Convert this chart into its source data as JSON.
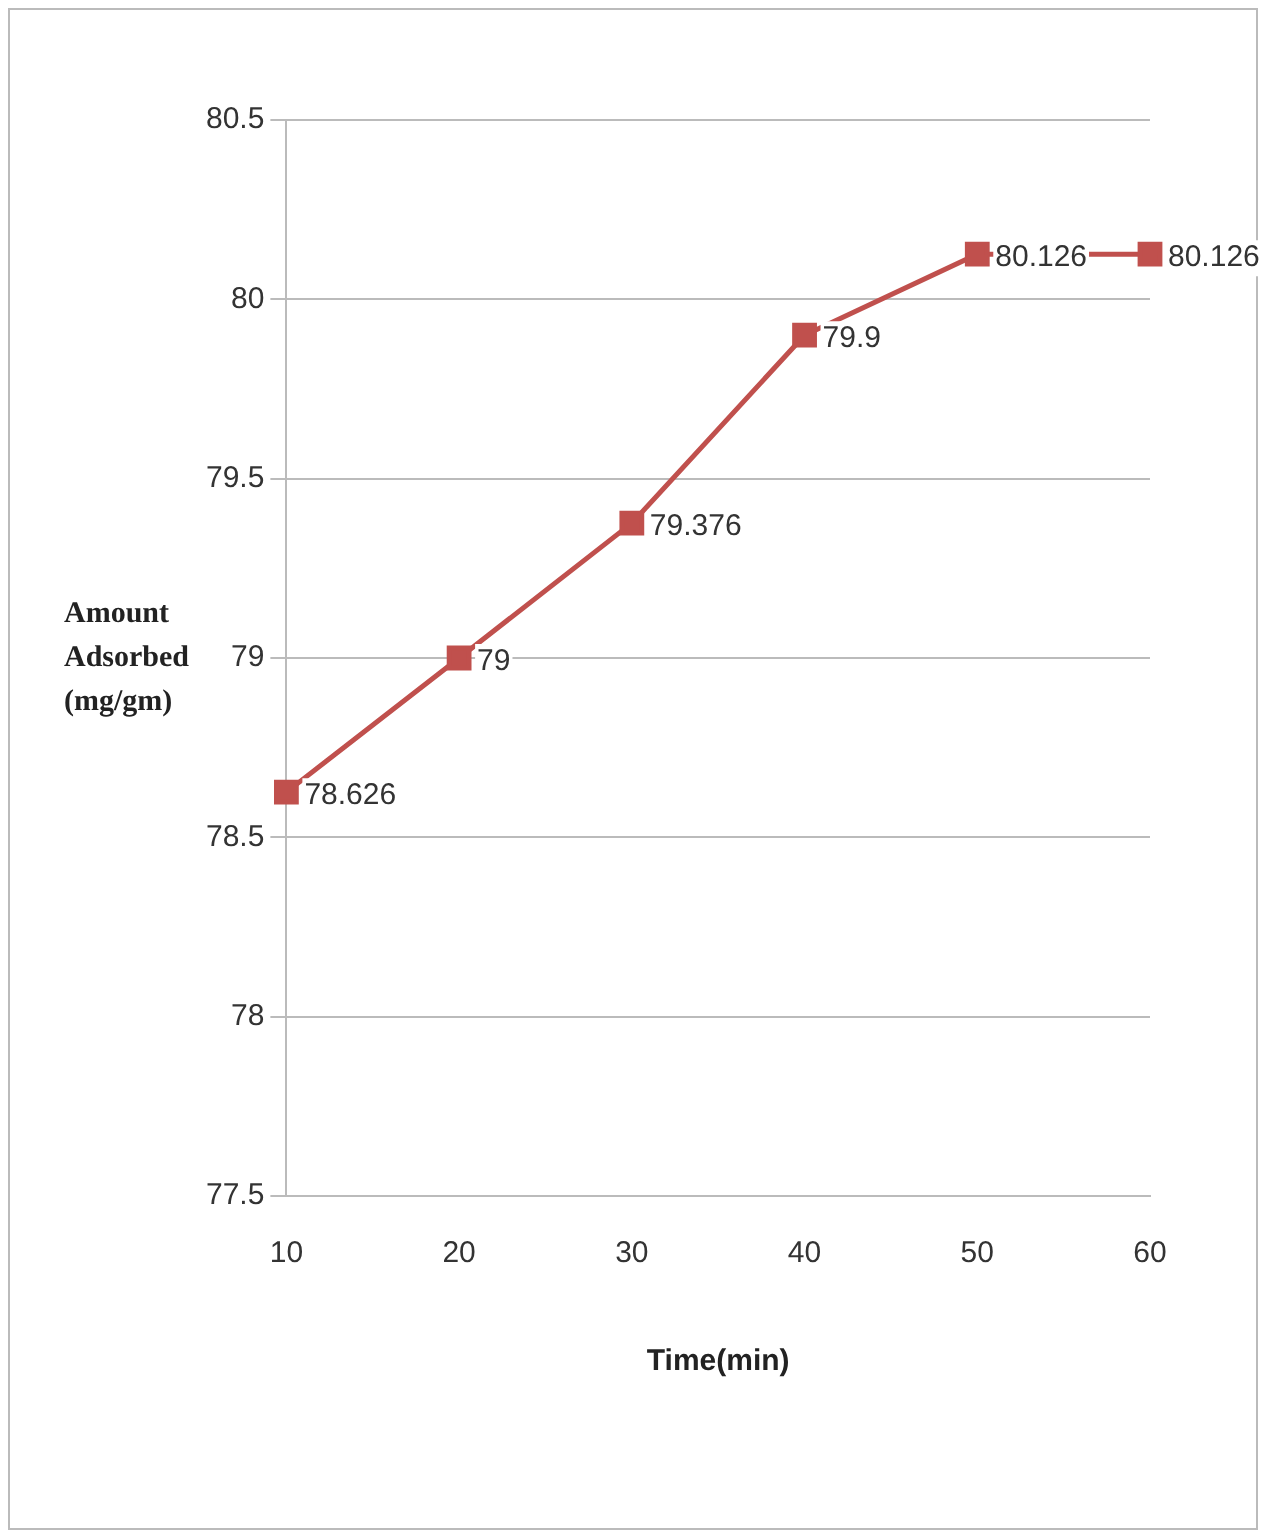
{
  "chart_data": {
    "type": "line",
    "xlabel": "Time(min)",
    "ylabel": "Amount Adsorbed (mg/gm)",
    "categories": [
      "10",
      "20",
      "30",
      "40",
      "50",
      "60"
    ],
    "series": [
      {
        "color": "#c0504d",
        "values": [
          78.626,
          79,
          79.376,
          79.9,
          80.126,
          80.126
        ]
      }
    ],
    "ylim": [
      77.5,
      80.5
    ],
    "yticks": [
      77.5,
      78,
      78.5,
      79,
      79.5,
      80,
      80.5
    ],
    "grid": "y",
    "legend": false,
    "marker": "square",
    "line_style": "solid",
    "data_labels": true
  }
}
